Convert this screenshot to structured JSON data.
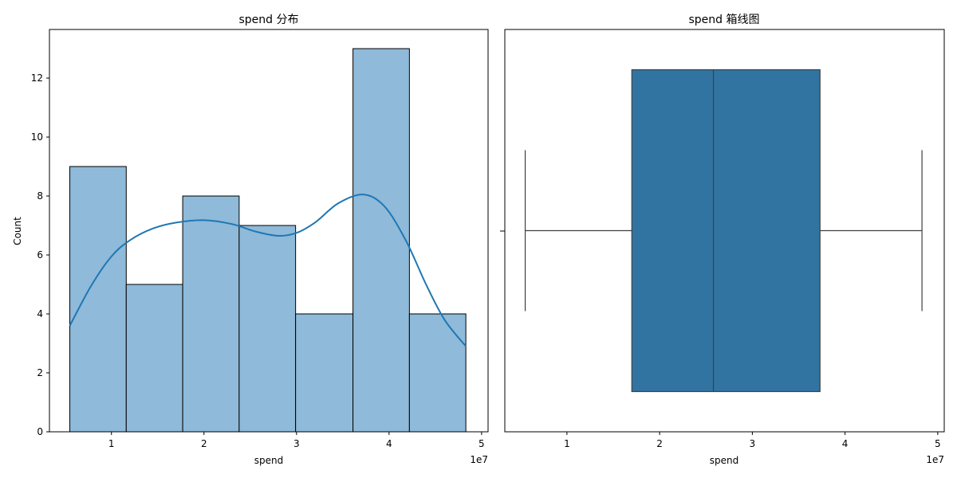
{
  "chart_data": [
    {
      "type": "bar",
      "title": "spend 分布",
      "xlabel": "spend",
      "ylabel": "Count",
      "x_offset_text": "1e7",
      "xlim": [
        0.33,
        5.07
      ],
      "ylim": [
        0,
        13.65
      ],
      "x_ticks": [
        1,
        2,
        3,
        4,
        5
      ],
      "y_ticks": [
        0,
        2,
        4,
        6,
        8,
        10,
        12
      ],
      "bins": [
        {
          "start": 0.55,
          "end": 1.16,
          "count": 9
        },
        {
          "start": 1.16,
          "end": 1.77,
          "count": 5
        },
        {
          "start": 1.77,
          "end": 2.38,
          "count": 8
        },
        {
          "start": 2.38,
          "end": 2.99,
          "count": 7
        },
        {
          "start": 2.99,
          "end": 3.61,
          "count": 4
        },
        {
          "start": 3.61,
          "end": 4.22,
          "count": 13
        },
        {
          "start": 4.22,
          "end": 4.83,
          "count": 4
        }
      ],
      "kde": {
        "x": [
          0.55,
          0.78,
          1.0,
          1.2,
          1.45,
          1.7,
          2.0,
          2.3,
          2.55,
          2.8,
          3.0,
          3.2,
          3.45,
          3.72,
          3.95,
          4.18,
          4.4,
          4.6,
          4.83
        ],
        "y": [
          3.6,
          4.95,
          5.95,
          6.5,
          6.9,
          7.1,
          7.18,
          7.05,
          6.8,
          6.65,
          6.75,
          7.1,
          7.75,
          8.05,
          7.65,
          6.5,
          5.0,
          3.8,
          2.9
        ]
      },
      "bar_color": "#8fbad9",
      "line_color": "#1f77b4"
    },
    {
      "type": "box",
      "title": "spend 箱线图",
      "xlabel": "spend",
      "x_offset_text": "1e7",
      "xlim": [
        0.33,
        5.07
      ],
      "x_ticks": [
        1,
        2,
        3,
        4,
        5
      ],
      "whisker_low": 0.55,
      "q1": 1.7,
      "median": 2.58,
      "q3": 3.73,
      "whisker_high": 4.83,
      "box_color": "#3274a1",
      "line_color": "#3f3f3f"
    }
  ]
}
